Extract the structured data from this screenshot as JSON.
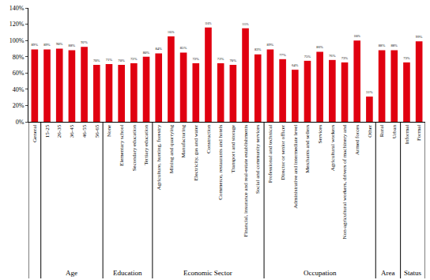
{
  "chart_data": {
    "type": "bar",
    "categories": [
      "General",
      "15-25",
      "26-35",
      "36-45",
      "46-55",
      "56-65",
      "None",
      "Elementary school",
      "Secondary education",
      "Tertiary education",
      "Agriculture, hunting, forestry",
      "Mining and quarrying",
      "Manufacturing",
      "Electricity, gas and water",
      "Construction",
      "Commerce, restaurants and hotels",
      "Transport and storage",
      "Financial, insurance and real-estate establishments",
      "Social and community services",
      "Professional and technical",
      "Director or senior officer",
      "Administrative and intermediate level",
      "Merchants and sellers",
      "Services",
      "Agricultural workers",
      "Non-agricultural workers, drivers of machinery and",
      "Armed forces",
      "Other",
      "Rural",
      "Urban",
      "Informal",
      "Formal"
    ],
    "groups": [
      null,
      "Age",
      "Age",
      "Age",
      "Age",
      "Age",
      "Education",
      "Education",
      "Education",
      "Education",
      "Economic Sector",
      "Economic Sector",
      "Economic Sector",
      "Economic Sector",
      "Economic Sector",
      "Economic Sector",
      "Economic Sector",
      "Economic Sector",
      "Economic Sector",
      "Occupation",
      "Occupation",
      "Occupation",
      "Occupation",
      "Occupation",
      "Occupation",
      "Occupation",
      "Occupation",
      "Occupation",
      "Area",
      "Area",
      "Status",
      "Status"
    ],
    "values": [
      89,
      89,
      90,
      88,
      92,
      70,
      71,
      70,
      72,
      80,
      84,
      105,
      85,
      72,
      116,
      72,
      70,
      115,
      83,
      89,
      77,
      64,
      75,
      86,
      76,
      73,
      100,
      31,
      88,
      88,
      73,
      99
    ],
    "value_labels": [
      "89%",
      "89%",
      "90%",
      "88%",
      "92%",
      "70%",
      "71%",
      "70%",
      "72%",
      "80%",
      "84%",
      "105%",
      "85%",
      "72%",
      "116%",
      "72%",
      "70%",
      "115%",
      "83%",
      "89%",
      "77%",
      "64%",
      "75%",
      "86%",
      "76%",
      "73%",
      "100%",
      "31%",
      "88%",
      "88%",
      "73%",
      "99%"
    ],
    "color": "#e00010",
    "ylim": [
      0,
      140
    ],
    "yticks": [
      {
        "value": 0,
        "label": "0%"
      },
      {
        "value": 20,
        "label": "20%"
      },
      {
        "value": 40,
        "label": "40%"
      },
      {
        "value": 60,
        "label": "60%"
      },
      {
        "value": 80,
        "label": "80%"
      },
      {
        "value": 100,
        "label": "100%"
      },
      {
        "value": 120,
        "label": "120%"
      },
      {
        "value": 140,
        "label": "140%"
      }
    ],
    "grid": false,
    "data_labels": true
  }
}
